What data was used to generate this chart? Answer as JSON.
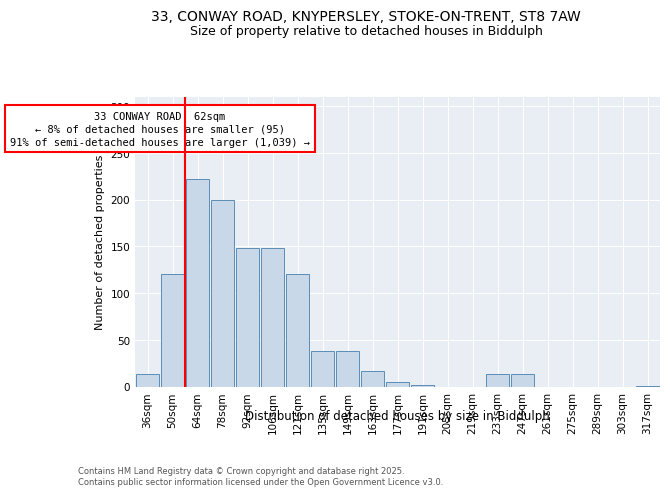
{
  "title_line1": "33, CONWAY ROAD, KNYPERSLEY, STOKE-ON-TRENT, ST8 7AW",
  "title_line2": "Size of property relative to detached houses in Biddulph",
  "xlabel": "Distribution of detached houses by size in Biddulph",
  "ylabel": "Number of detached properties",
  "categories": [
    "36sqm",
    "50sqm",
    "64sqm",
    "78sqm",
    "92sqm",
    "106sqm",
    "121sqm",
    "135sqm",
    "149sqm",
    "163sqm",
    "177sqm",
    "191sqm",
    "205sqm",
    "219sqm",
    "233sqm",
    "247sqm",
    "261sqm",
    "275sqm",
    "289sqm",
    "303sqm",
    "317sqm"
  ],
  "values": [
    14,
    120,
    222,
    200,
    148,
    148,
    120,
    38,
    38,
    17,
    5,
    2,
    0,
    0,
    13,
    13,
    0,
    0,
    0,
    0,
    1
  ],
  "bar_color": "#c8d8e8",
  "bar_edge_color": "#5b8db8",
  "vline_color": "red",
  "vline_pos": 1.5,
  "annotation_text": "33 CONWAY ROAD: 62sqm\n← 8% of detached houses are smaller (95)\n91% of semi-detached houses are larger (1,039) →",
  "annotation_box_color": "white",
  "annotation_box_edge": "red",
  "ylim": [
    0,
    310
  ],
  "yticks": [
    0,
    50,
    100,
    150,
    200,
    250,
    300
  ],
  "background_color": "#e8eef4",
  "footer_text": "Contains HM Land Registry data © Crown copyright and database right 2025.\nContains public sector information licensed under the Open Government Licence v3.0.",
  "title_fontsize": 10,
  "subtitle_fontsize": 9,
  "axis_label_fontsize": 8.5,
  "tick_fontsize": 7.5,
  "annotation_fontsize": 7.5,
  "ylabel_fontsize": 8
}
